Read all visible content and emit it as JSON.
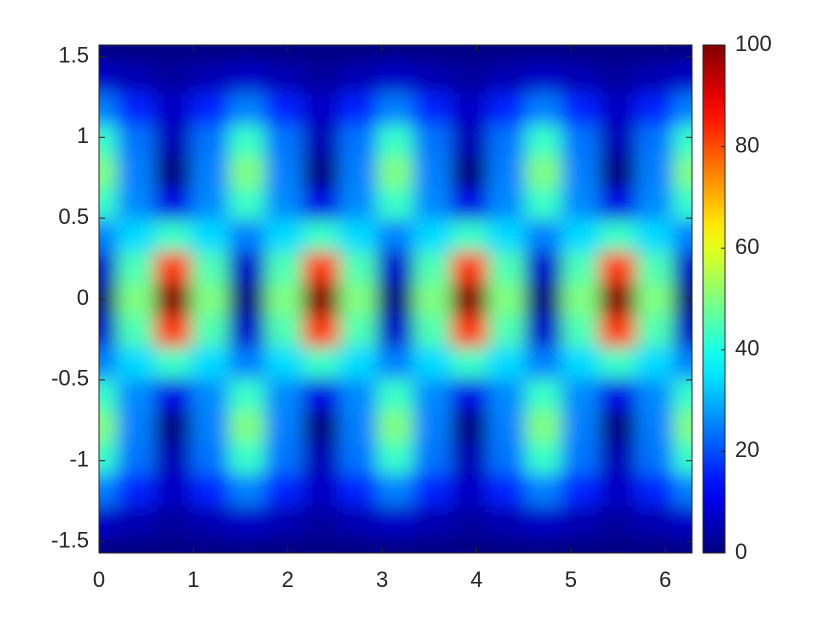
{
  "chart_data": {
    "type": "heatmap",
    "x": [
      0,
      0.3927,
      0.7854,
      1.1781,
      1.5708,
      1.9635,
      2.3562,
      2.7489,
      3.1416,
      3.5343,
      3.927,
      4.3197,
      4.7124,
      5.1051,
      5.4978,
      5.8905,
      6.2832
    ],
    "y": [
      -1.5708,
      -1.3744,
      -1.1781,
      -0.9817,
      -0.7854,
      -0.589,
      -0.3927,
      -0.1963,
      0,
      0.1963,
      0.3927,
      0.589,
      0.7854,
      0.9817,
      1.1781,
      1.3744,
      1.5708
    ],
    "z": [
      [
        0,
        0,
        0,
        0,
        0,
        0,
        0,
        0,
        0,
        0,
        0,
        0,
        0,
        0,
        0,
        0,
        0
      ],
      [
        7,
        5,
        3,
        5,
        7,
        5,
        3,
        5,
        7,
        5,
        3,
        5,
        7,
        5,
        3,
        5,
        7
      ],
      [
        25,
        16,
        7,
        16,
        25,
        16,
        7,
        16,
        25,
        16,
        7,
        16,
        25,
        16,
        7,
        16,
        25
      ],
      [
        43,
        24,
        5,
        24,
        43,
        24,
        5,
        24,
        43,
        24,
        5,
        24,
        43,
        24,
        5,
        24,
        43
      ],
      [
        50,
        25,
        0,
        25,
        50,
        25,
        0,
        25,
        50,
        25,
        0,
        25,
        50,
        25,
        0,
        25,
        50
      ],
      [
        43,
        26,
        10,
        26,
        43,
        26,
        10,
        26,
        43,
        26,
        10,
        26,
        43,
        26,
        10,
        26,
        43
      ],
      [
        25,
        34,
        43,
        34,
        25,
        34,
        43,
        34,
        25,
        34,
        43,
        34,
        25,
        34,
        43,
        34,
        25
      ],
      [
        7,
        45,
        82,
        45,
        7,
        45,
        82,
        45,
        7,
        45,
        82,
        45,
        7,
        45,
        82,
        45,
        7
      ],
      [
        0,
        50,
        100,
        50,
        0,
        50,
        100,
        50,
        0,
        50,
        100,
        50,
        0,
        50,
        100,
        50,
        0
      ],
      [
        7,
        45,
        82,
        45,
        7,
        45,
        82,
        45,
        7,
        45,
        82,
        45,
        7,
        45,
        82,
        45,
        7
      ],
      [
        25,
        34,
        43,
        34,
        25,
        34,
        43,
        34,
        25,
        34,
        43,
        34,
        25,
        34,
        43,
        34,
        25
      ],
      [
        43,
        26,
        10,
        26,
        43,
        26,
        10,
        26,
        43,
        26,
        10,
        26,
        43,
        26,
        10,
        26,
        43
      ],
      [
        50,
        25,
        0,
        25,
        50,
        25,
        0,
        25,
        50,
        25,
        0,
        25,
        50,
        25,
        0,
        25,
        50
      ],
      [
        43,
        24,
        5,
        24,
        43,
        24,
        5,
        24,
        43,
        24,
        5,
        24,
        43,
        24,
        5,
        24,
        43
      ],
      [
        25,
        16,
        7,
        16,
        25,
        16,
        7,
        16,
        25,
        16,
        7,
        16,
        25,
        16,
        7,
        16,
        25
      ],
      [
        7,
        5,
        3,
        5,
        7,
        5,
        3,
        5,
        7,
        5,
        3,
        5,
        7,
        5,
        3,
        5,
        7
      ],
      [
        0,
        0,
        0,
        0,
        0,
        0,
        0,
        0,
        0,
        0,
        0,
        0,
        0,
        0,
        0,
        0,
        0
      ]
    ],
    "xlim": [
      0,
      6.2832
    ],
    "xticks": [
      0,
      1,
      2,
      3,
      4,
      5,
      6
    ],
    "ylim": [
      -1.5708,
      1.5708
    ],
    "yticks": [
      -1.5,
      -1,
      -0.5,
      0,
      0.5,
      1,
      1.5
    ],
    "colormap": "jet",
    "clim": [
      0,
      100
    ],
    "cticks": [
      0,
      20,
      40,
      60,
      80,
      100
    ]
  }
}
